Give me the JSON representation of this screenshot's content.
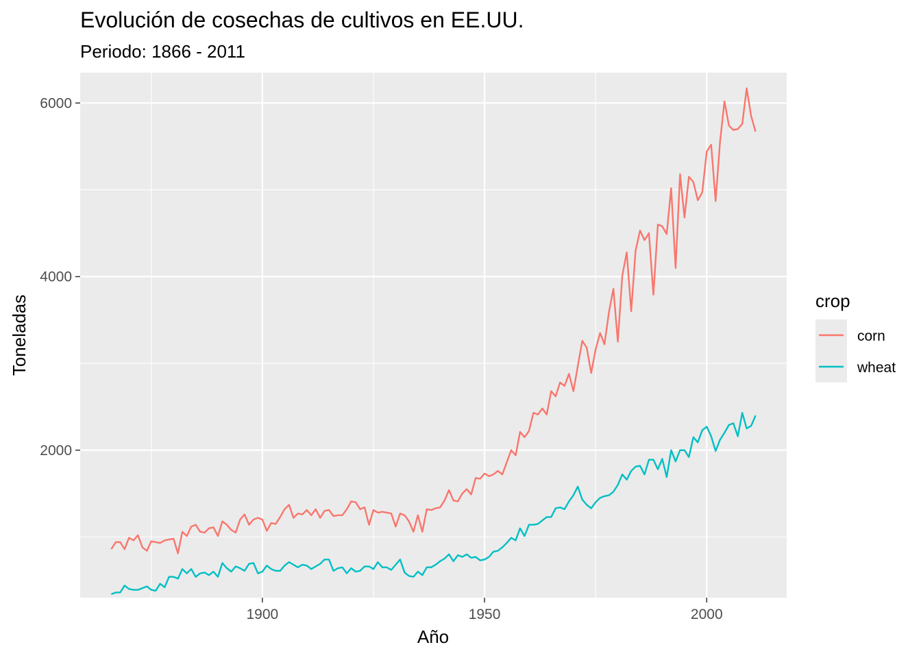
{
  "chart_data": {
    "type": "line",
    "title": "Evolución de cosechas de cultivos en EE.UU.",
    "subtitle": "Periodo: 1866 - 2011",
    "xlabel": "Año",
    "ylabel": "Toneladas",
    "xlim": [
      1859,
      2018
    ],
    "ylim": [
      300,
      6350
    ],
    "x_ticks": [
      1900,
      1950,
      2000
    ],
    "y_ticks": [
      2000,
      4000,
      6000
    ],
    "x_minor": [
      1875,
      1925,
      1975
    ],
    "y_minor": [
      1000,
      3000,
      5000
    ],
    "grid": true,
    "legend": {
      "title": "crop",
      "position": "right"
    },
    "series": [
      {
        "name": "corn",
        "color": "#F8766D",
        "points": [
          [
            1866,
            860
          ],
          [
            1867,
            940
          ],
          [
            1868,
            940
          ],
          [
            1869,
            860
          ],
          [
            1870,
            990
          ],
          [
            1871,
            960
          ],
          [
            1872,
            1020
          ],
          [
            1873,
            880
          ],
          [
            1874,
            840
          ],
          [
            1875,
            950
          ],
          [
            1876,
            940
          ],
          [
            1877,
            930
          ],
          [
            1878,
            960
          ],
          [
            1879,
            970
          ],
          [
            1880,
            980
          ],
          [
            1881,
            810
          ],
          [
            1882,
            1060
          ],
          [
            1883,
            1010
          ],
          [
            1884,
            1120
          ],
          [
            1885,
            1140
          ],
          [
            1886,
            1060
          ],
          [
            1887,
            1050
          ],
          [
            1888,
            1100
          ],
          [
            1889,
            1110
          ],
          [
            1890,
            1010
          ],
          [
            1891,
            1180
          ],
          [
            1892,
            1140
          ],
          [
            1893,
            1080
          ],
          [
            1894,
            1050
          ],
          [
            1895,
            1200
          ],
          [
            1896,
            1260
          ],
          [
            1897,
            1140
          ],
          [
            1898,
            1200
          ],
          [
            1899,
            1220
          ],
          [
            1900,
            1200
          ],
          [
            1901,
            1070
          ],
          [
            1902,
            1160
          ],
          [
            1903,
            1150
          ],
          [
            1904,
            1230
          ],
          [
            1905,
            1320
          ],
          [
            1906,
            1370
          ],
          [
            1907,
            1220
          ],
          [
            1908,
            1270
          ],
          [
            1909,
            1260
          ],
          [
            1910,
            1310
          ],
          [
            1911,
            1250
          ],
          [
            1912,
            1320
          ],
          [
            1913,
            1220
          ],
          [
            1914,
            1300
          ],
          [
            1915,
            1310
          ],
          [
            1916,
            1240
          ],
          [
            1917,
            1250
          ],
          [
            1918,
            1250
          ],
          [
            1919,
            1320
          ],
          [
            1920,
            1410
          ],
          [
            1921,
            1400
          ],
          [
            1922,
            1320
          ],
          [
            1923,
            1340
          ],
          [
            1924,
            1140
          ],
          [
            1925,
            1310
          ],
          [
            1926,
            1280
          ],
          [
            1927,
            1290
          ],
          [
            1928,
            1280
          ],
          [
            1929,
            1270
          ],
          [
            1930,
            1120
          ],
          [
            1931,
            1270
          ],
          [
            1932,
            1250
          ],
          [
            1933,
            1180
          ],
          [
            1934,
            1060
          ],
          [
            1935,
            1250
          ],
          [
            1936,
            1060
          ],
          [
            1937,
            1320
          ],
          [
            1938,
            1310
          ],
          [
            1939,
            1330
          ],
          [
            1940,
            1340
          ],
          [
            1941,
            1420
          ],
          [
            1942,
            1540
          ],
          [
            1943,
            1420
          ],
          [
            1944,
            1410
          ],
          [
            1945,
            1500
          ],
          [
            1946,
            1550
          ],
          [
            1947,
            1490
          ],
          [
            1948,
            1680
          ],
          [
            1949,
            1670
          ],
          [
            1950,
            1730
          ],
          [
            1951,
            1700
          ],
          [
            1952,
            1720
          ],
          [
            1953,
            1760
          ],
          [
            1954,
            1720
          ],
          [
            1955,
            1860
          ],
          [
            1956,
            2000
          ],
          [
            1957,
            1940
          ],
          [
            1958,
            2210
          ],
          [
            1959,
            2150
          ],
          [
            1960,
            2220
          ],
          [
            1961,
            2430
          ],
          [
            1962,
            2410
          ],
          [
            1963,
            2480
          ],
          [
            1964,
            2410
          ],
          [
            1965,
            2680
          ],
          [
            1966,
            2620
          ],
          [
            1967,
            2780
          ],
          [
            1968,
            2740
          ],
          [
            1969,
            2880
          ],
          [
            1970,
            2680
          ],
          [
            1971,
            2970
          ],
          [
            1972,
            3260
          ],
          [
            1973,
            3180
          ],
          [
            1974,
            2890
          ],
          [
            1975,
            3160
          ],
          [
            1976,
            3350
          ],
          [
            1977,
            3220
          ],
          [
            1978,
            3590
          ],
          [
            1979,
            3860
          ],
          [
            1980,
            3250
          ],
          [
            1981,
            4010
          ],
          [
            1982,
            4280
          ],
          [
            1983,
            3600
          ],
          [
            1984,
            4300
          ],
          [
            1985,
            4530
          ],
          [
            1986,
            4420
          ],
          [
            1987,
            4500
          ],
          [
            1988,
            3790
          ],
          [
            1989,
            4600
          ],
          [
            1990,
            4580
          ],
          [
            1991,
            4490
          ],
          [
            1992,
            5020
          ],
          [
            1993,
            4100
          ],
          [
            1994,
            5180
          ],
          [
            1995,
            4680
          ],
          [
            1996,
            5150
          ],
          [
            1997,
            5090
          ],
          [
            1998,
            4880
          ],
          [
            1999,
            4970
          ],
          [
            2000,
            5440
          ],
          [
            2001,
            5520
          ],
          [
            2002,
            4870
          ],
          [
            2003,
            5550
          ],
          [
            2004,
            6020
          ],
          [
            2005,
            5740
          ],
          [
            2006,
            5690
          ],
          [
            2007,
            5700
          ],
          [
            2008,
            5760
          ],
          [
            2009,
            6170
          ],
          [
            2010,
            5850
          ],
          [
            2011,
            5670
          ]
        ]
      },
      {
        "name": "wheat",
        "color": "#00BFC4",
        "points": [
          [
            1866,
            340
          ],
          [
            1867,
            360
          ],
          [
            1868,
            360
          ],
          [
            1869,
            440
          ],
          [
            1870,
            400
          ],
          [
            1871,
            390
          ],
          [
            1872,
            390
          ],
          [
            1873,
            410
          ],
          [
            1874,
            430
          ],
          [
            1875,
            390
          ],
          [
            1876,
            380
          ],
          [
            1877,
            460
          ],
          [
            1878,
            420
          ],
          [
            1879,
            540
          ],
          [
            1880,
            540
          ],
          [
            1881,
            520
          ],
          [
            1882,
            630
          ],
          [
            1883,
            580
          ],
          [
            1884,
            630
          ],
          [
            1885,
            540
          ],
          [
            1886,
            580
          ],
          [
            1887,
            590
          ],
          [
            1888,
            560
          ],
          [
            1889,
            600
          ],
          [
            1890,
            540
          ],
          [
            1891,
            700
          ],
          [
            1892,
            640
          ],
          [
            1893,
            600
          ],
          [
            1894,
            660
          ],
          [
            1895,
            640
          ],
          [
            1896,
            610
          ],
          [
            1897,
            690
          ],
          [
            1898,
            700
          ],
          [
            1899,
            580
          ],
          [
            1900,
            600
          ],
          [
            1901,
            670
          ],
          [
            1902,
            630
          ],
          [
            1903,
            610
          ],
          [
            1904,
            610
          ],
          [
            1905,
            670
          ],
          [
            1906,
            710
          ],
          [
            1907,
            680
          ],
          [
            1908,
            650
          ],
          [
            1909,
            680
          ],
          [
            1910,
            670
          ],
          [
            1911,
            630
          ],
          [
            1912,
            660
          ],
          [
            1913,
            690
          ],
          [
            1914,
            740
          ],
          [
            1915,
            740
          ],
          [
            1916,
            610
          ],
          [
            1917,
            640
          ],
          [
            1918,
            650
          ],
          [
            1919,
            580
          ],
          [
            1920,
            640
          ],
          [
            1921,
            600
          ],
          [
            1922,
            610
          ],
          [
            1923,
            660
          ],
          [
            1924,
            660
          ],
          [
            1925,
            630
          ],
          [
            1926,
            710
          ],
          [
            1927,
            650
          ],
          [
            1928,
            650
          ],
          [
            1929,
            620
          ],
          [
            1930,
            680
          ],
          [
            1931,
            740
          ],
          [
            1932,
            590
          ],
          [
            1933,
            550
          ],
          [
            1934,
            540
          ],
          [
            1935,
            600
          ],
          [
            1936,
            560
          ],
          [
            1937,
            650
          ],
          [
            1938,
            650
          ],
          [
            1939,
            680
          ],
          [
            1940,
            720
          ],
          [
            1941,
            750
          ],
          [
            1942,
            800
          ],
          [
            1943,
            720
          ],
          [
            1944,
            790
          ],
          [
            1945,
            770
          ],
          [
            1946,
            800
          ],
          [
            1947,
            760
          ],
          [
            1948,
            770
          ],
          [
            1949,
            730
          ],
          [
            1950,
            740
          ],
          [
            1951,
            770
          ],
          [
            1952,
            830
          ],
          [
            1953,
            840
          ],
          [
            1954,
            880
          ],
          [
            1955,
            930
          ],
          [
            1956,
            990
          ],
          [
            1957,
            960
          ],
          [
            1958,
            1100
          ],
          [
            1959,
            1010
          ],
          [
            1960,
            1140
          ],
          [
            1961,
            1140
          ],
          [
            1962,
            1150
          ],
          [
            1963,
            1190
          ],
          [
            1964,
            1230
          ],
          [
            1965,
            1230
          ],
          [
            1966,
            1330
          ],
          [
            1967,
            1340
          ],
          [
            1968,
            1320
          ],
          [
            1969,
            1410
          ],
          [
            1970,
            1480
          ],
          [
            1971,
            1580
          ],
          [
            1972,
            1430
          ],
          [
            1973,
            1370
          ],
          [
            1974,
            1330
          ],
          [
            1975,
            1400
          ],
          [
            1976,
            1450
          ],
          [
            1977,
            1470
          ],
          [
            1978,
            1480
          ],
          [
            1979,
            1520
          ],
          [
            1980,
            1600
          ],
          [
            1981,
            1720
          ],
          [
            1982,
            1660
          ],
          [
            1983,
            1760
          ],
          [
            1984,
            1810
          ],
          [
            1985,
            1820
          ],
          [
            1986,
            1720
          ],
          [
            1987,
            1890
          ],
          [
            1988,
            1890
          ],
          [
            1989,
            1780
          ],
          [
            1990,
            1900
          ],
          [
            1991,
            1690
          ],
          [
            1992,
            2000
          ],
          [
            1993,
            1870
          ],
          [
            1994,
            2000
          ],
          [
            1995,
            2000
          ],
          [
            1996,
            1920
          ],
          [
            1997,
            2150
          ],
          [
            1998,
            2090
          ],
          [
            1999,
            2230
          ],
          [
            2000,
            2270
          ],
          [
            2001,
            2160
          ],
          [
            2002,
            1990
          ],
          [
            2003,
            2120
          ],
          [
            2004,
            2200
          ],
          [
            2005,
            2290
          ],
          [
            2006,
            2310
          ],
          [
            2007,
            2160
          ],
          [
            2008,
            2430
          ],
          [
            2009,
            2250
          ],
          [
            2010,
            2280
          ],
          [
            2011,
            2400
          ]
        ]
      }
    ]
  }
}
